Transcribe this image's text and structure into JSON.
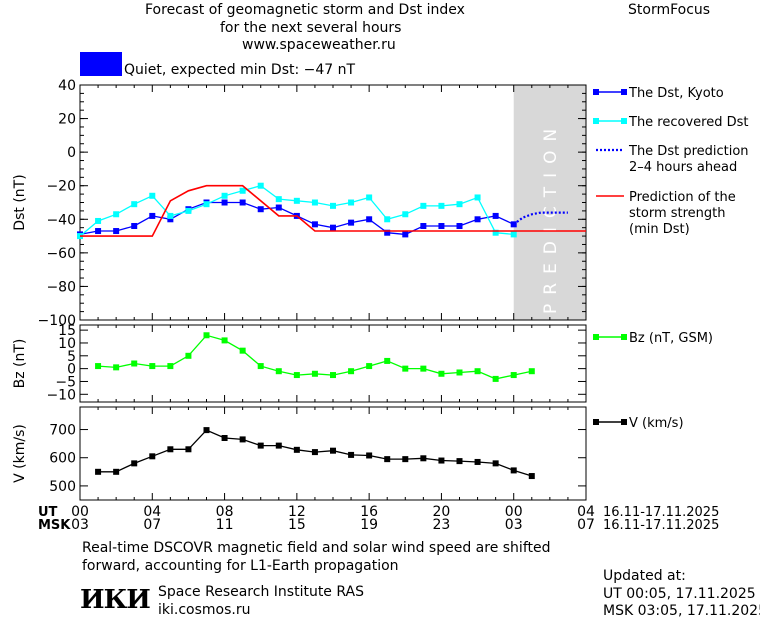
{
  "header": {
    "title_line1": "Forecast of geomagnetic storm and Dst index",
    "title_line2": "for the next several hours",
    "title_line3": "www.spaceweather.ru",
    "brand": "StormFocus"
  },
  "status": {
    "label": "Quiet, expected min Dst: −47 nT",
    "color": "#0000ff"
  },
  "footer": {
    "note_line1": "Real-time DSCOVR magnetic field and solar wind speed are shifted",
    "note_line2": "forward, accounting for L1-Earth propagation",
    "logo_text": "ИКИ",
    "org_name": "Space Research Institute RAS",
    "org_url": "iki.cosmos.ru",
    "updated_label": "Updated at:",
    "updated_ut": "UT   00:05, 17.11.2025",
    "updated_msk": "MSK 03:05, 17.11.2025"
  },
  "time_axis": {
    "ut_label": "UT",
    "msk_label": "MSK",
    "ut_ticks": [
      "00",
      "04",
      "08",
      "12",
      "16",
      "20",
      "00",
      "04"
    ],
    "msk_ticks": [
      "03",
      "07",
      "11",
      "15",
      "19",
      "23",
      "03",
      "07"
    ],
    "ut_range": "16.11-17.11.2025",
    "msk_range": "16.11-17.11.2025"
  },
  "chart_data": [
    {
      "type": "line",
      "ylabel": "Dst (nT)",
      "ylim": [
        -100,
        40
      ],
      "yticks": [
        40,
        20,
        0,
        -20,
        -40,
        -60,
        -80,
        -100
      ],
      "xlim": [
        0,
        28
      ],
      "xunit": "hours since 00 UT 16.11.2025",
      "prediction_label": "PREDICTION",
      "prediction_band": [
        24,
        28
      ],
      "prediction_band_color": "#d8d8d8",
      "series": [
        {
          "name": "The Dst, Kyoto",
          "color": "#0000ff",
          "x": [
            0,
            1,
            2,
            3,
            4,
            5,
            6,
            7,
            8,
            9,
            10,
            11,
            12,
            13,
            14,
            15,
            16,
            17,
            18,
            19,
            20,
            21,
            22,
            23,
            24
          ],
          "values": [
            -49,
            -47,
            -47,
            -44,
            -38,
            -40,
            -34,
            -30,
            -30,
            -30,
            -34,
            -33,
            -38,
            -43,
            -45,
            -42,
            -40,
            -48,
            -49,
            -44,
            -44,
            -44,
            -40,
            -38,
            -43
          ]
        },
        {
          "name": "The recovered Dst",
          "color": "#00ffff",
          "x": [
            0,
            1,
            2,
            3,
            4,
            5,
            6,
            7,
            8,
            9,
            10,
            11,
            12,
            13,
            14,
            15,
            16,
            17,
            18,
            19,
            20,
            21,
            22,
            23,
            24
          ],
          "values": [
            -50,
            -41,
            -37,
            -31,
            -26,
            -38,
            -35,
            -31,
            -26,
            -23,
            -20,
            -28,
            -29,
            -30,
            -32,
            -30,
            -27,
            -40,
            -37,
            -32,
            -32,
            -31,
            -27,
            -48,
            -49
          ]
        },
        {
          "name": "The Dst prediction\n2–4 hours ahead",
          "color": "#0000ff",
          "x": [
            24,
            24.5,
            25,
            25.5,
            26,
            27
          ],
          "values": [
            -43,
            -39,
            -37,
            -36,
            -36,
            -36
          ]
        },
        {
          "name": "Prediction of the\nstorm strength\n(min Dst)",
          "color": "#ff0000",
          "x": [
            0,
            4,
            5,
            6,
            7,
            9,
            11,
            12,
            13,
            22,
            28
          ],
          "values": [
            -50,
            -50,
            -29,
            -23,
            -20,
            -20,
            -38,
            -38,
            -47,
            -47,
            -47
          ]
        }
      ]
    },
    {
      "type": "line",
      "ylabel": "Bz (nT)",
      "ylim": [
        -13,
        17
      ],
      "yticks": [
        15,
        10,
        5,
        0,
        -5,
        -10
      ],
      "xlim": [
        0,
        28
      ],
      "series": [
        {
          "name": "Bz (nT, GSM)",
          "color": "#00ff00",
          "x": [
            1,
            2,
            3,
            4,
            5,
            6,
            7,
            8,
            9,
            10,
            11,
            12,
            13,
            14,
            15,
            16,
            17,
            18,
            19,
            20,
            21,
            22,
            23,
            24,
            25
          ],
          "values": [
            1,
            0.5,
            2,
            1,
            1,
            5,
            13,
            11,
            7,
            1,
            -1,
            -2.5,
            -2,
            -2.5,
            -1,
            1,
            3,
            0,
            0,
            -2,
            -1.5,
            -1,
            -4,
            -2.5,
            -1
          ]
        }
      ]
    },
    {
      "type": "line",
      "ylabel": "V (km/s)",
      "ylim": [
        450,
        780
      ],
      "yticks": [
        700,
        600,
        500
      ],
      "xlim": [
        0,
        28
      ],
      "series": [
        {
          "name": "V (km/s)",
          "color": "#000000",
          "x": [
            1,
            2,
            3,
            4,
            5,
            6,
            7,
            8,
            9,
            10,
            11,
            12,
            13,
            14,
            15,
            16,
            17,
            18,
            19,
            20,
            21,
            22,
            23,
            24,
            25
          ],
          "values": [
            550,
            550,
            580,
            605,
            630,
            630,
            698,
            670,
            665,
            643,
            643,
            628,
            620,
            625,
            610,
            608,
            595,
            595,
            598,
            590,
            588,
            585,
            580,
            555,
            535
          ]
        }
      ]
    }
  ]
}
